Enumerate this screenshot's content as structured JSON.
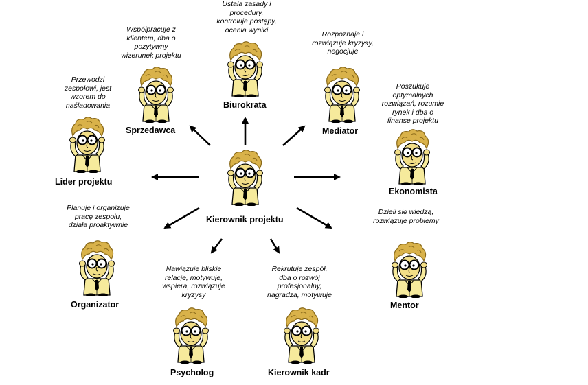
{
  "center": {
    "title": "Kierownik projektu"
  },
  "roles": {
    "biurokrata": {
      "title": "Biurokrata",
      "desc": [
        "Ustala zasady i",
        "procedury,",
        "kontroluje postępy,",
        "ocenia wyniki"
      ]
    },
    "sprzedawca": {
      "title": "Sprzedawca",
      "desc": [
        "Współpracuje z",
        "klientem, dba o",
        "pozytywny",
        "wizerunek projektu"
      ]
    },
    "mediator": {
      "title": "Mediator",
      "desc": [
        "Rozpoznaje i",
        "rozwiązuje kryzysy,",
        "negocjuje"
      ]
    },
    "lider": {
      "title": "Lider projektu",
      "desc": [
        "Przewodzi",
        "zespołowi, jest",
        "wzorem do",
        "naśladowania"
      ]
    },
    "ekonomista": {
      "title": "Ekonomista",
      "desc": [
        "Poszukuje",
        "optymalnych",
        "rozwiązań, rozumie",
        "rynek i dba o",
        "finanse projektu"
      ]
    },
    "organizator": {
      "title": "Organizator",
      "desc": [
        "Planuje i organizuje",
        "pracę zespołu,",
        "działa proaktywnie"
      ]
    },
    "mentor": {
      "title": "Mentor",
      "desc": [
        "Dzieli się wiedzą,",
        "rozwiązuje problemy"
      ]
    },
    "psycholog": {
      "title": "Psycholog",
      "desc": [
        "Nawiązuje bliskie",
        "relacje, motywuje,",
        "wspiera, rozwiązuje",
        "kryzysy"
      ]
    },
    "kadr": {
      "title": "Kierownik kadr",
      "desc": [
        "Rekrutuje zespół,",
        "dba o rozwój",
        "profesjonalny,",
        "nagradza, motywuje"
      ]
    }
  },
  "colors": {
    "hair": "#d9b24a",
    "hair_dark": "#8a6a1a",
    "skin": "#f2de87",
    "shirt": "#f6ea9c",
    "arrow": "#000000"
  }
}
